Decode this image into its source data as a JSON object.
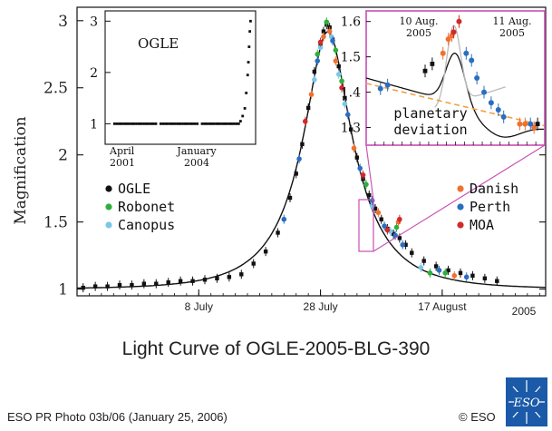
{
  "chart_data": {
    "main": {
      "type": "scatter",
      "ylabel": "Magnification",
      "ylim": [
        0.95,
        3.1
      ],
      "y_ticks": [
        1,
        1.5,
        2,
        2.5,
        3
      ],
      "y_tick_labels": [
        "1",
        "1.5",
        "2",
        "2.5",
        "3"
      ],
      "x_ticks": [
        8,
        28,
        48
      ],
      "x_tick_labels": [
        "8 July",
        "28 July",
        "17 August"
      ],
      "year_label": "2005",
      "xlim": [
        -12,
        65
      ],
      "colors": {
        "OGLE": "#111111",
        "Robonet": "#2fae3c",
        "Canopus": "#7cc7e8",
        "Danish": "#f07030",
        "Perth": "#2a6ec0",
        "MOA": "#d22a2a",
        "model": "#111111",
        "box": "#c84fb2"
      },
      "legend_left": [
        "OGLE",
        "Robonet",
        "Canopus"
      ],
      "legend_right": [
        "Danish",
        "Perth",
        "MOA"
      ],
      "series": [
        {
          "name": "OGLE",
          "points": [
            [
              -11,
              1.01
            ],
            [
              -9,
              1.02
            ],
            [
              -7,
              1.02
            ],
            [
              -5,
              1.03
            ],
            [
              -3,
              1.03
            ],
            [
              -1,
              1.04
            ],
            [
              1,
              1.04
            ],
            [
              3,
              1.05
            ],
            [
              5,
              1.06
            ],
            [
              7,
              1.06
            ],
            [
              9,
              1.07
            ],
            [
              11,
              1.08
            ],
            [
              13,
              1.09
            ],
            [
              15,
              1.11
            ],
            [
              17,
              1.19
            ],
            [
              19,
              1.28
            ],
            [
              21,
              1.42
            ],
            [
              23,
              1.68
            ],
            [
              24,
              1.86
            ],
            [
              25,
              2.08
            ],
            [
              26,
              2.35
            ],
            [
              27,
              2.62
            ],
            [
              28,
              2.82
            ],
            [
              28.5,
              2.92
            ],
            [
              29,
              2.97
            ],
            [
              29.5,
              2.95
            ],
            [
              30,
              2.86
            ],
            [
              31,
              2.66
            ],
            [
              32,
              2.42
            ],
            [
              33,
              2.19
            ],
            [
              34,
              1.98
            ],
            [
              35,
              1.82
            ],
            [
              36,
              1.7
            ],
            [
              37,
              1.6
            ],
            [
              38,
              1.52
            ],
            [
              39,
              1.45
            ],
            [
              40,
              1.41
            ],
            [
              41,
              1.38
            ],
            [
              42,
              1.33
            ],
            [
              43,
              1.27
            ],
            [
              45,
              1.21
            ],
            [
              47,
              1.17
            ],
            [
              49,
              1.14
            ],
            [
              51,
              1.12
            ],
            [
              53,
              1.1
            ],
            [
              55,
              1.08
            ],
            [
              57,
              1.06
            ]
          ]
        },
        {
          "name": "Robonet",
          "points": [
            [
              27.5,
              2.75
            ],
            [
              29,
              2.99
            ],
            [
              30.5,
              2.78
            ],
            [
              31.5,
              2.55
            ],
            [
              35.5,
              1.78
            ],
            [
              40.5,
              1.46
            ],
            [
              46,
              1.12
            ],
            [
              48.5,
              1.12
            ]
          ]
        },
        {
          "name": "Canopus",
          "points": [
            [
              27,
              2.56
            ],
            [
              28,
              2.8
            ],
            [
              29.8,
              2.88
            ],
            [
              31,
              2.6
            ],
            [
              32,
              2.38
            ],
            [
              36.5,
              1.62
            ],
            [
              39.5,
              1.43
            ],
            [
              44.5,
              1.16
            ]
          ]
        },
        {
          "name": "Danish",
          "points": [
            [
              26.5,
              2.45
            ],
            [
              28.5,
              2.88
            ],
            [
              29.5,
              2.92
            ],
            [
              30.5,
              2.7
            ],
            [
              33.5,
              2.05
            ],
            [
              37.5,
              1.57
            ],
            [
              40.8,
              1.5
            ],
            [
              50,
              1.1
            ]
          ]
        },
        {
          "name": "Perth",
          "points": [
            [
              22,
              1.52
            ],
            [
              24.5,
              1.97
            ],
            [
              27.5,
              2.7
            ],
            [
              30,
              2.85
            ],
            [
              32.5,
              2.3
            ],
            [
              34.5,
              1.9
            ],
            [
              36.5,
              1.66
            ],
            [
              38.5,
              1.47
            ],
            [
              40.3,
              1.4
            ],
            [
              41.5,
              1.33
            ],
            [
              47.5,
              1.14
            ],
            [
              52,
              1.09
            ]
          ]
        },
        {
          "name": "MOA",
          "points": [
            [
              25.5,
              2.25
            ],
            [
              28,
              2.84
            ],
            [
              31.5,
              2.5
            ],
            [
              35,
              1.85
            ],
            [
              39,
              1.44
            ],
            [
              41,
              1.52
            ]
          ]
        }
      ]
    },
    "inset_left": {
      "title": "OGLE",
      "ylim": [
        0.6,
        3.2
      ],
      "y_ticks": [
        1,
        2,
        3
      ],
      "y_tick_labels": [
        "1",
        "2",
        "3"
      ],
      "x_labels": [
        {
          "month": "April",
          "year": "2001"
        },
        {
          "month": "January",
          "year": "2004"
        }
      ],
      "baseline": 1.0,
      "rise_points": [
        [
          0.92,
          1.05
        ],
        [
          0.935,
          1.15
        ],
        [
          0.95,
          1.3
        ],
        [
          0.96,
          1.6
        ],
        [
          0.97,
          1.95
        ],
        [
          0.975,
          2.2
        ],
        [
          0.98,
          2.5
        ],
        [
          0.985,
          2.8
        ],
        [
          0.99,
          3.0
        ]
      ]
    },
    "inset_right": {
      "ylim": [
        1.25,
        1.63
      ],
      "y_ticks": [
        1.3,
        1.4,
        1.5,
        1.6
      ],
      "y_tick_labels": [
        "1.3",
        "1.4",
        "1.5",
        "1.6"
      ],
      "xlim": [
        0,
        10
      ],
      "date_labels": [
        {
          "day": "10 Aug.",
          "year": "2005",
          "x": 3.6
        },
        {
          "day": "11 Aug.",
          "year": "2005",
          "x": 8.3
        }
      ],
      "annotation": [
        "planetary",
        "deviation"
      ],
      "points_blue": [
        [
          0.8,
          1.41
        ],
        [
          1.2,
          1.42
        ],
        [
          5.6,
          1.51
        ],
        [
          5.9,
          1.49
        ],
        [
          6.2,
          1.44
        ],
        [
          6.6,
          1.4
        ],
        [
          7.0,
          1.37
        ],
        [
          7.4,
          1.35
        ],
        [
          7.7,
          1.33
        ],
        [
          9.2,
          1.31
        ]
      ],
      "points_orange": [
        [
          4.3,
          1.51
        ],
        [
          4.6,
          1.55
        ],
        [
          4.8,
          1.56
        ],
        [
          8.6,
          1.31
        ],
        [
          8.9,
          1.31
        ],
        [
          9.4,
          1.3
        ]
      ],
      "points_red": [
        [
          4.9,
          1.57
        ],
        [
          5.2,
          1.6
        ]
      ],
      "points_black": [
        [
          3.3,
          1.46
        ],
        [
          3.7,
          1.48
        ],
        [
          9.6,
          1.31
        ]
      ]
    },
    "footer": {
      "title": "Light Curve of OGLE-2005-BLG-390",
      "photo_credit": "ESO PR Photo 03b/06 (January 25, 2006)",
      "copyright": "© ESO",
      "logo_text": "ESO"
    }
  }
}
